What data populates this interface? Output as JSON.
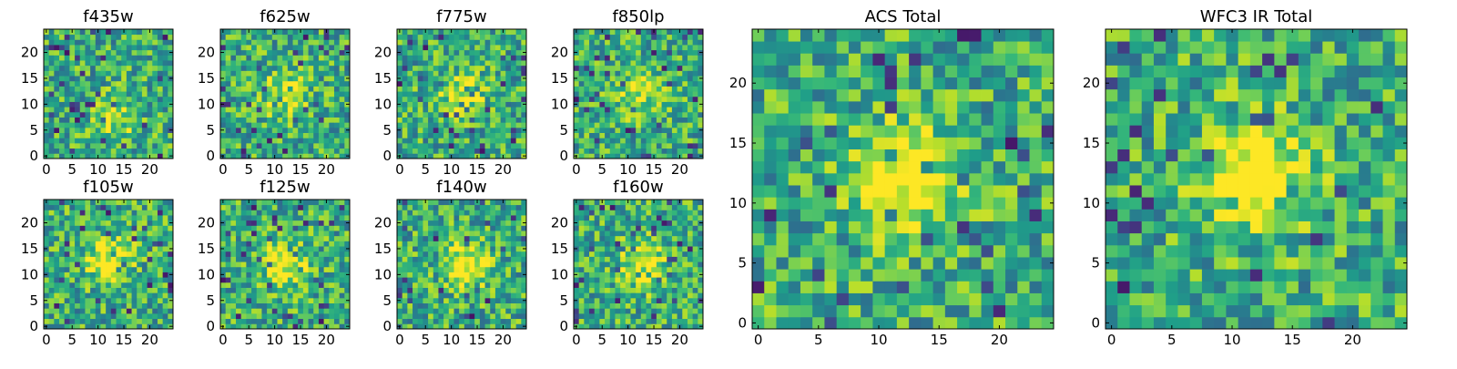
{
  "figure": {
    "panels_ticks": {
      "small_x": [
        "0",
        "5",
        "10",
        "15",
        "20"
      ],
      "small_y": [
        "0",
        "5",
        "10",
        "15",
        "20"
      ],
      "large_x": [
        "0",
        "5",
        "10",
        "15",
        "20"
      ],
      "large_y": [
        "0",
        "5",
        "10",
        "15",
        "20"
      ]
    }
  },
  "chart_data": [
    {
      "type": "heatmap",
      "title": "f435w",
      "colormap": "viridis",
      "grid": [
        25,
        25
      ],
      "xlim": [
        -0.5,
        24.5
      ],
      "ylim": [
        -0.5,
        24.5
      ],
      "seed": 11,
      "hotspot": [
        13,
        7
      ],
      "hotspot_strength": 0.25
    },
    {
      "type": "heatmap",
      "title": "f625w",
      "colormap": "viridis",
      "grid": [
        25,
        25
      ],
      "xlim": [
        -0.5,
        24.5
      ],
      "ylim": [
        -0.5,
        24.5
      ],
      "seed": 23,
      "hotspot": [
        12,
        12
      ],
      "hotspot_strength": 0.35
    },
    {
      "type": "heatmap",
      "title": "f775w",
      "colormap": "viridis",
      "grid": [
        25,
        25
      ],
      "xlim": [
        -0.5,
        24.5
      ],
      "ylim": [
        -0.5,
        24.5
      ],
      "seed": 37,
      "hotspot": [
        12,
        12
      ],
      "hotspot_strength": 0.35
    },
    {
      "type": "heatmap",
      "title": "f850lp",
      "colormap": "viridis",
      "grid": [
        25,
        25
      ],
      "xlim": [
        -0.5,
        24.5
      ],
      "ylim": [
        -0.5,
        24.5
      ],
      "seed": 41,
      "hotspot": [
        12,
        12
      ],
      "hotspot_strength": 0.3
    },
    {
      "type": "heatmap",
      "title": "f105w",
      "colormap": "viridis",
      "grid": [
        25,
        25
      ],
      "xlim": [
        -0.5,
        24.5
      ],
      "ylim": [
        -0.5,
        24.5
      ],
      "seed": 53,
      "hotspot": [
        12,
        13
      ],
      "hotspot_strength": 0.45
    },
    {
      "type": "heatmap",
      "title": "f125w",
      "colormap": "viridis",
      "grid": [
        25,
        25
      ],
      "xlim": [
        -0.5,
        24.5
      ],
      "ylim": [
        -0.5,
        24.5
      ],
      "seed": 67,
      "hotspot": [
        12,
        12
      ],
      "hotspot_strength": 0.45
    },
    {
      "type": "heatmap",
      "title": "f140w",
      "colormap": "viridis",
      "grid": [
        25,
        25
      ],
      "xlim": [
        -0.5,
        24.5
      ],
      "ylim": [
        -0.5,
        24.5
      ],
      "seed": 79,
      "hotspot": [
        13,
        12
      ],
      "hotspot_strength": 0.45
    },
    {
      "type": "heatmap",
      "title": "f160w",
      "colormap": "viridis",
      "grid": [
        25,
        25
      ],
      "xlim": [
        -0.5,
        24.5
      ],
      "ylim": [
        -0.5,
        24.5
      ],
      "seed": 83,
      "hotspot": [
        13,
        12
      ],
      "hotspot_strength": 0.45
    },
    {
      "type": "heatmap",
      "title": "ACS Total",
      "colormap": "viridis",
      "grid": [
        25,
        25
      ],
      "xlim": [
        -0.5,
        24.5
      ],
      "ylim": [
        -0.5,
        24.5
      ],
      "seed": 97,
      "hotspot": [
        12,
        12
      ],
      "hotspot_strength": 0.55
    },
    {
      "type": "heatmap",
      "title": "WFC3 IR Total",
      "colormap": "viridis",
      "grid": [
        25,
        25
      ],
      "xlim": [
        -0.5,
        24.5
      ],
      "ylim": [
        -0.5,
        24.5
      ],
      "seed": 101,
      "hotspot": [
        12,
        12
      ],
      "hotspot_strength": 0.6
    }
  ]
}
